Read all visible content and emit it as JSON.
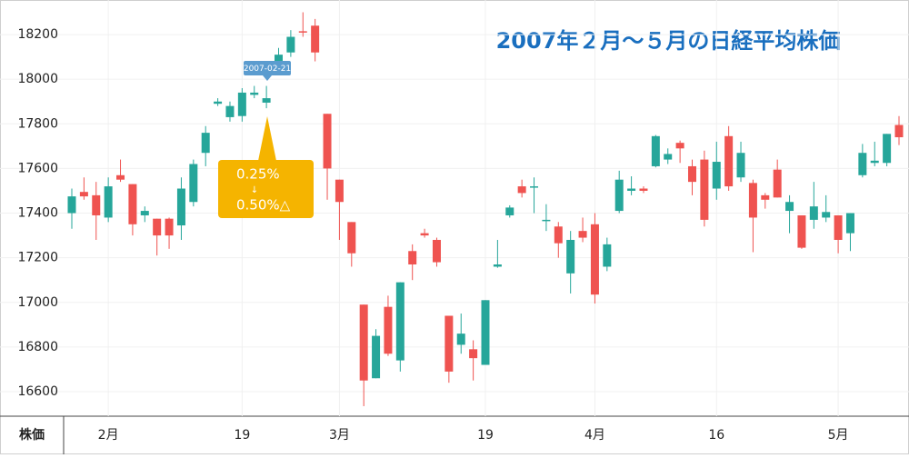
{
  "chart_data": {
    "type": "candlestick",
    "title": "2007年２月〜５月の日経平均株価",
    "y_label": "株価",
    "categories": [
      null,
      null,
      null,
      "2月",
      null,
      null,
      null,
      null,
      null,
      null,
      null,
      null,
      null,
      null,
      "19",
      null,
      null,
      null,
      null,
      null,
      null,
      null,
      "3月",
      null,
      null,
      null,
      null,
      null,
      null,
      null,
      null,
      null,
      null,
      null,
      "19",
      null,
      null,
      null,
      null,
      null,
      null,
      null,
      null,
      "4月",
      null,
      null,
      null,
      null,
      null,
      null,
      null,
      null,
      null,
      "16",
      null,
      null,
      null,
      null,
      null,
      null,
      null,
      null,
      null,
      "5月",
      null,
      null,
      null,
      null,
      null
    ],
    "open": [
      17400,
      17495,
      17480,
      17380,
      17570,
      17530,
      17390,
      17375,
      17375,
      17345,
      17450,
      17670,
      17890,
      17830,
      17835,
      17930,
      17895,
      18070,
      18120,
      18215,
      18240,
      17845,
      17550,
      17360,
      16990,
      16660,
      16980,
      16740,
      17230,
      17310,
      17280,
      16940,
      16810,
      16790,
      16720,
      17160,
      17390,
      17520,
      17515,
      17365,
      17340,
      17130,
      17320,
      17350,
      17160,
      17410,
      17500,
      17510,
      17610,
      17640,
      17715,
      17610,
      17640,
      17510,
      17745,
      17560,
      17535,
      17480,
      17595,
      17410,
      17390,
      17370,
      17380,
      17390,
      17310,
      17570,
      17625,
      17625,
      17795
    ],
    "high": [
      17510,
      17560,
      17540,
      17560,
      17640,
      17530,
      17430,
      17375,
      17380,
      17560,
      17640,
      17790,
      17915,
      17900,
      17960,
      17970,
      17970,
      18140,
      18220,
      18300,
      18270,
      17845,
      17550,
      17360,
      16990,
      16880,
      17030,
      17090,
      17260,
      17330,
      17290,
      16940,
      16950,
      16830,
      17010,
      17280,
      17435,
      17550,
      17560,
      17440,
      17360,
      17320,
      17380,
      17400,
      17290,
      17590,
      17565,
      17520,
      17750,
      17690,
      17725,
      17640,
      17680,
      17720,
      17790,
      17720,
      17550,
      17490,
      17640,
      17480,
      17390,
      17540,
      17480,
      17390,
      17400,
      17710,
      17720,
      17755,
      17835
    ],
    "low": [
      17330,
      17460,
      17280,
      17360,
      17540,
      17300,
      17360,
      17210,
      17240,
      17280,
      17430,
      17610,
      17880,
      17810,
      17810,
      17915,
      17870,
      18060,
      18100,
      18190,
      18080,
      17460,
      17280,
      17160,
      16535,
      16660,
      16760,
      16690,
      17100,
      17290,
      17160,
      16640,
      16770,
      16650,
      16720,
      17155,
      17380,
      17470,
      17400,
      17320,
      17200,
      17040,
      17270,
      16995,
      17140,
      17400,
      17480,
      17490,
      17605,
      17620,
      17625,
      17480,
      17340,
      17460,
      17500,
      17540,
      17225,
      17420,
      17470,
      17310,
      17240,
      17330,
      17360,
      17220,
      17230,
      17560,
      17610,
      17610,
      17705
    ],
    "close": [
      17475,
      17475,
      17390,
      17520,
      17550,
      17350,
      17410,
      17300,
      17300,
      17510,
      17620,
      17760,
      17900,
      17880,
      17940,
      17940,
      17915,
      18110,
      18190,
      18210,
      18120,
      17600,
      17450,
      17220,
      16650,
      16850,
      16770,
      17090,
      17170,
      17300,
      17180,
      16690,
      16860,
      16750,
      17010,
      17170,
      17425,
      17490,
      17520,
      17370,
      17265,
      17280,
      17290,
      17035,
      17260,
      17550,
      17510,
      17500,
      17745,
      17665,
      17690,
      17540,
      17370,
      17630,
      17520,
      17670,
      17380,
      17460,
      17470,
      17450,
      17245,
      17430,
      17405,
      17280,
      17400,
      17670,
      17635,
      17755,
      17740
    ],
    "up_color": "#26a69a",
    "down_color": "#ef5350",
    "ylim": [
      16490,
      18355
    ],
    "yticks": [
      16600,
      16800,
      17000,
      17200,
      17400,
      17600,
      17800,
      18000,
      18200
    ],
    "grid": true,
    "annotations": {
      "tooltip": "2007-02-21",
      "callout": [
        "0.25%",
        "↓",
        "0.50%△"
      ]
    }
  }
}
